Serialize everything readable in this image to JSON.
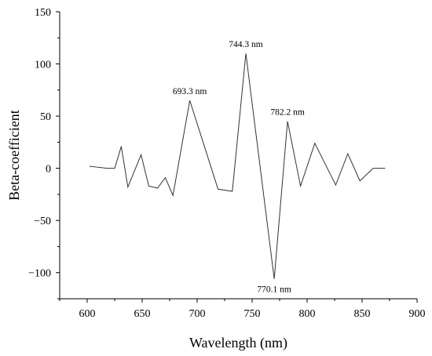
{
  "chart_data": {
    "type": "line",
    "title": "",
    "xlabel": "Wavelength (nm)",
    "ylabel": "Beta-coefficient",
    "xlim": [
      575,
      900
    ],
    "ylim": [
      -125,
      150
    ],
    "x_ticks": [
      600,
      650,
      700,
      750,
      800,
      850,
      900
    ],
    "y_ticks": [
      -100,
      -50,
      0,
      50,
      100,
      150
    ],
    "x_tick_labels": [
      "600",
      "650",
      "700",
      "750",
      "800",
      "850",
      "900"
    ],
    "y_tick_labels": [
      "−100",
      "−50",
      "0",
      "50",
      "100",
      "150"
    ],
    "grid": false,
    "legend": "none",
    "line_color": "#333333",
    "series": [
      {
        "x": [
          602,
          610,
          618,
          625,
          631,
          637,
          649,
          656,
          664,
          671,
          678,
          693.3,
          719,
          732,
          744.3,
          770.1,
          782.2,
          794,
          807,
          826,
          837,
          848,
          860,
          871
        ],
        "values": [
          2,
          1,
          0,
          0,
          21,
          -18,
          13,
          -17,
          -19,
          -9,
          -26,
          65,
          -20,
          -22,
          110,
          -106,
          45,
          -17,
          24,
          -16,
          14,
          -12,
          0,
          0
        ]
      }
    ],
    "annotations": [
      {
        "text": "693.3 nm",
        "x": 693.3,
        "y": 65,
        "position": "above"
      },
      {
        "text": "744.3 nm",
        "x": 744.3,
        "y": 110,
        "position": "above"
      },
      {
        "text": "782.2 nm",
        "x": 782.2,
        "y": 45,
        "position": "above"
      },
      {
        "text": "770.1 nm",
        "x": 770.1,
        "y": -106,
        "position": "below"
      }
    ]
  }
}
